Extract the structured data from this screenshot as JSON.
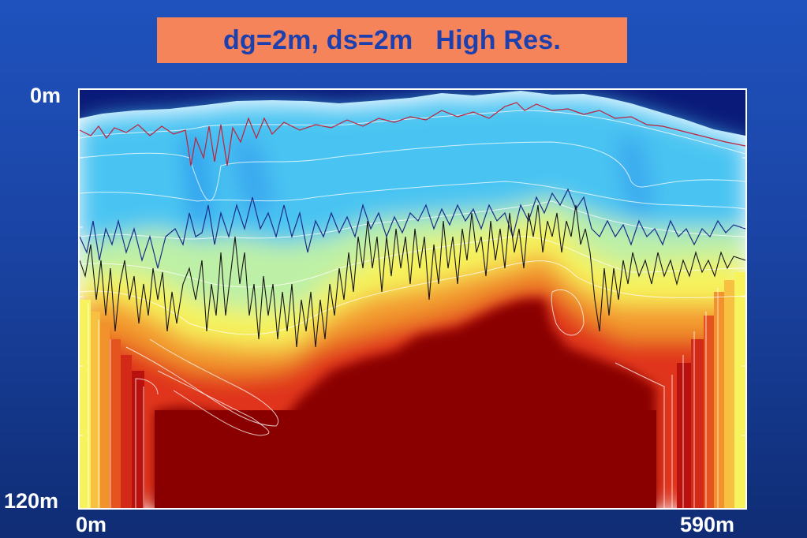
{
  "title": "dg=2m, ds=2m   High Res.",
  "chart_data": {
    "type": "heatmap",
    "title": "dg=2m, ds=2m   High Res.",
    "x_tick_labels": [
      "0m",
      "590m"
    ],
    "y_tick_labels": [
      "0m",
      "120m"
    ],
    "xlim": [
      0,
      590
    ],
    "ylim": [
      0,
      120
    ],
    "y_inverted": true,
    "colormap": [
      "#0a1a78",
      "#1f5fe0",
      "#2fa6f0",
      "#5ad7f2",
      "#bfef9a",
      "#f7f55a",
      "#f6c53a",
      "#f08a2a",
      "#e03a1c",
      "#c1140e",
      "#8a0000"
    ],
    "overlay_lines": [
      "white-contours",
      "red-line",
      "dark-blue-line",
      "black-line"
    ]
  }
}
